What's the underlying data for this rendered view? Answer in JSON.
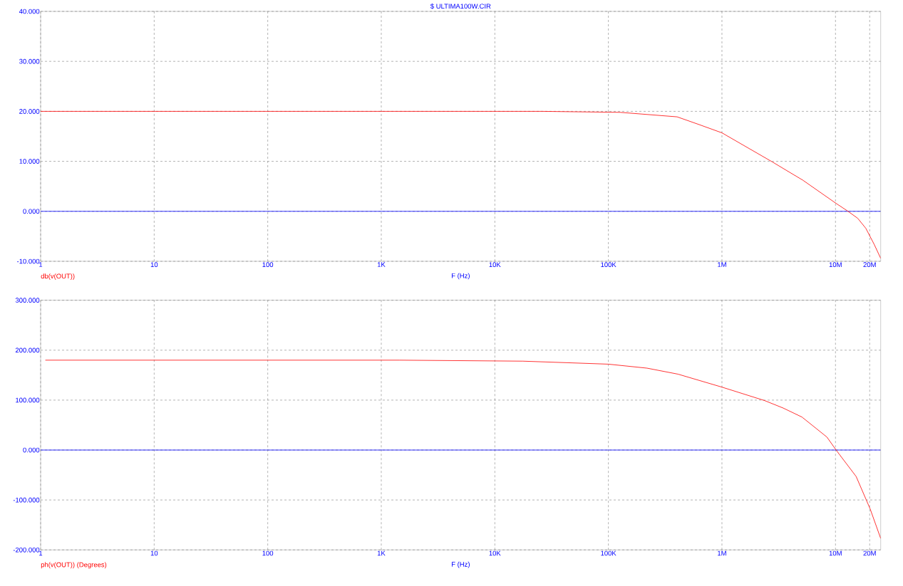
{
  "chart_data": [
    {
      "type": "line",
      "title": "$ ULTIMA100W.CIR",
      "xlabel": "F (Hz)",
      "log": "x",
      "grid": true,
      "line_style": "solid",
      "xlim": [
        1,
        25000000
      ],
      "ylim": [
        -10,
        40
      ],
      "xticks": [
        1,
        10,
        100,
        {
          "value": 1000,
          "label": "1K"
        },
        {
          "value": 10000,
          "label": "10K"
        },
        {
          "value": 100000,
          "label": "100K"
        },
        {
          "value": 1000000,
          "label": "1M"
        },
        {
          "value": 10000000,
          "label": "10M"
        },
        {
          "value": 20000000,
          "label": "20M"
        }
      ],
      "yticks": [
        {
          "value": -10,
          "label": "-10.000"
        },
        {
          "value": 0,
          "label": "0.000"
        },
        {
          "value": 10,
          "label": "10.000"
        },
        {
          "value": 20,
          "label": "20.000"
        },
        {
          "value": 30,
          "label": "30.000"
        },
        {
          "value": 40,
          "label": "40.000"
        }
      ],
      "ref_lines": [
        {
          "axis": "y",
          "value": 0,
          "color": "#0000ff"
        }
      ],
      "series": [
        {
          "name": "db(v(OUT))",
          "color": "#ff0000",
          "x": [
            1,
            26000,
            127000,
            403000,
            621000,
            1000000,
            2770000,
            5180000,
            10100000,
            12900000,
            15700000,
            18500000,
            21900000,
            25000000
          ],
          "values": [
            20,
            20,
            19.8,
            18.9,
            17.4,
            15.7,
            9.9,
            6.2,
            1.6,
            0,
            -1.4,
            -3.4,
            -6.6,
            -9.4
          ]
        }
      ]
    },
    {
      "type": "line",
      "xlabel": "F (Hz)",
      "log": "x",
      "grid": true,
      "line_style": "solid",
      "xlim": [
        1,
        25000000
      ],
      "ylim": [
        -200,
        300
      ],
      "xticks": [
        1,
        10,
        100,
        {
          "value": 1000,
          "label": "1K"
        },
        {
          "value": 10000,
          "label": "10K"
        },
        {
          "value": 100000,
          "label": "100K"
        },
        {
          "value": 1000000,
          "label": "1M"
        },
        {
          "value": 10000000,
          "label": "10M"
        },
        {
          "value": 20000000,
          "label": "20M"
        }
      ],
      "yticks": [
        {
          "value": -200,
          "label": "-200.000"
        },
        {
          "value": -100,
          "label": "-100.000"
        },
        {
          "value": 0,
          "label": "0.000"
        },
        {
          "value": 100,
          "label": "100.000"
        },
        {
          "value": 200,
          "label": "200.000"
        },
        {
          "value": 300,
          "label": "300.000"
        }
      ],
      "ref_lines": [
        {
          "axis": "y",
          "value": 0,
          "color": "#0000ff"
        }
      ],
      "series": [
        {
          "name": "ph(v(OUT)) (Degrees)",
          "color": "#ff0000",
          "x": [
            1.1,
            1440,
            17700,
            100000,
            219000,
            410000,
            1000000,
            2380000,
            3470000,
            5070000,
            8400000,
            10200000,
            15200000,
            20200000,
            25000000
          ],
          "values": [
            180,
            180,
            178,
            172,
            164,
            152,
            126,
            99,
            84,
            66,
            26,
            -1,
            -53,
            -118,
            -177
          ]
        }
      ]
    }
  ]
}
